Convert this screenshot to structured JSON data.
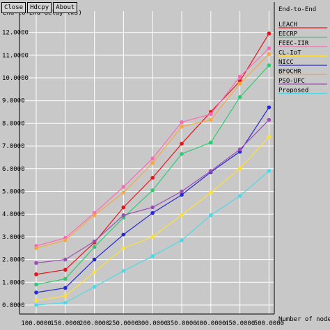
{
  "toolbar": {
    "close_label": "Close",
    "hdcpy_label": "Hdcpy",
    "about_label": "About"
  },
  "chart_data": {
    "type": "line",
    "title": "",
    "ylabel": "End-to-End delay (ms)",
    "xlabel": "Number of nodes",
    "legend_title": "End-to-End",
    "legend_position": "top-right",
    "grid": true,
    "x": [
      100,
      150,
      200,
      250,
      300,
      350,
      400,
      450,
      500
    ],
    "x_tick_labels": [
      "100.0000",
      "150.0000",
      "200.0000",
      "250.0000",
      "300.0000",
      "350.0000",
      "400.0000",
      "450.0000",
      "500.0000"
    ],
    "ylim": [
      0,
      12
    ],
    "y_ticks": [
      0,
      1,
      2,
      3,
      4,
      5,
      6,
      7,
      8,
      9,
      10,
      11,
      12
    ],
    "y_tick_labels": [
      "0.0000",
      "1.0000",
      "2.0000",
      "3.0000",
      "4.0000",
      "5.0000",
      "6.0000",
      "7.0000",
      "8.0000",
      "9.0000",
      "10.0000",
      "11.0000",
      "12.0000"
    ],
    "series": [
      {
        "name": "LEACH",
        "color": "#e8131b",
        "values": [
          1.35,
          1.55,
          2.75,
          4.3,
          5.6,
          7.1,
          8.5,
          9.85,
          11.95
        ]
      },
      {
        "name": "EECRP",
        "color": "#2ecc71",
        "values": [
          0.9,
          1.15,
          2.55,
          3.85,
          5.05,
          6.65,
          7.15,
          9.15,
          10.55
        ]
      },
      {
        "name": "FEEC-IIR",
        "color": "#ff69b4",
        "values": [
          2.6,
          2.95,
          4.05,
          5.2,
          6.45,
          8.05,
          8.4,
          10.05,
          11.3
        ]
      },
      {
        "name": "CL-IoT",
        "color": "#ffe135",
        "values": [
          0.2,
          0.4,
          1.45,
          2.5,
          3.0,
          3.95,
          4.95,
          6.0,
          7.4
        ]
      },
      {
        "name": "NICC",
        "color": "#2828d8",
        "values": [
          0.55,
          0.75,
          2.0,
          3.1,
          4.05,
          4.85,
          5.85,
          6.75,
          8.7
        ]
      },
      {
        "name": "BFOCHR",
        "color": "#f7a842",
        "values": [
          2.5,
          2.85,
          3.95,
          4.95,
          6.25,
          7.85,
          8.15,
          9.75,
          11.05
        ]
      },
      {
        "name": "PSO-UFC",
        "color": "#9b4fb5",
        "values": [
          1.85,
          2.0,
          2.8,
          3.95,
          4.3,
          5.0,
          5.9,
          6.85,
          8.15
        ]
      },
      {
        "name": "Proposed",
        "color": "#4fd8e8",
        "values": [
          0.0,
          0.1,
          0.8,
          1.5,
          2.15,
          2.85,
          3.95,
          4.8,
          5.9
        ]
      }
    ]
  }
}
